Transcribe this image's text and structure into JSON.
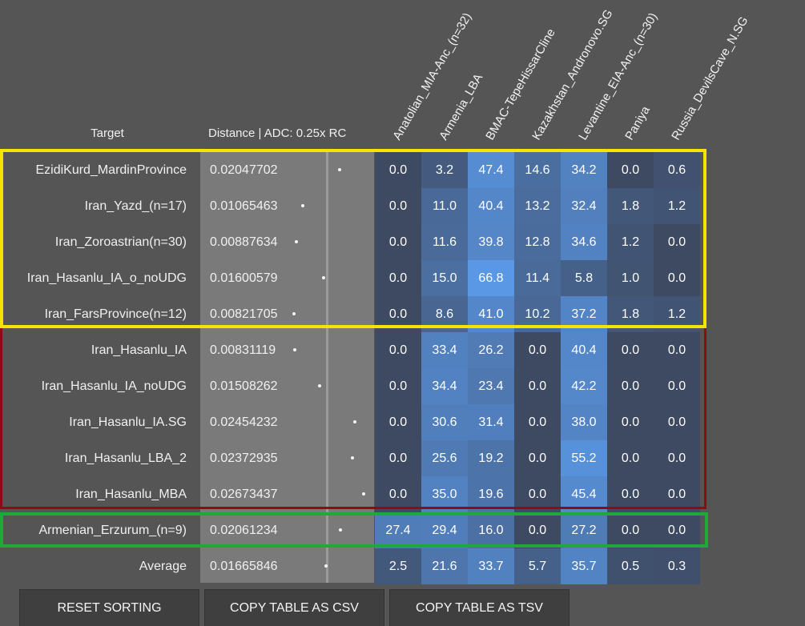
{
  "header": {
    "target_label": "Target",
    "distance_label": "Distance | ADC: 0.25x RC"
  },
  "columns": [
    "Anatolian_MIA-Anc_(n=32)",
    "Armenia_LBA",
    "BMAC-TepeHissarCline",
    "Kazakhstan_Andronovo.SG",
    "Levantine_EIA-Anc_(n=30)",
    "Paniya",
    "Russia_DevilsCave_N.SG"
  ],
  "rows": [
    {
      "target": "EzidiKurd_MardinProvince",
      "distance": "0.02047702",
      "dist_value": 0.02047702,
      "values": [
        "0.0",
        "3.2",
        "47.4",
        "14.6",
        "34.2",
        "0.0",
        "0.6"
      ]
    },
    {
      "target": "Iran_Yazd_(n=17)",
      "distance": "0.01065463",
      "dist_value": 0.01065463,
      "values": [
        "0.0",
        "11.0",
        "40.4",
        "13.2",
        "32.4",
        "1.8",
        "1.2"
      ]
    },
    {
      "target": "Iran_Zoroastrian(n=30)",
      "distance": "0.00887634",
      "dist_value": 0.00887634,
      "values": [
        "0.0",
        "11.6",
        "39.8",
        "12.8",
        "34.6",
        "1.2",
        "0.0"
      ]
    },
    {
      "target": "Iran_Hasanlu_IA_o_noUDG",
      "distance": "0.01600579",
      "dist_value": 0.01600579,
      "values": [
        "0.0",
        "15.0",
        "66.8",
        "11.4",
        "5.8",
        "1.0",
        "0.0"
      ]
    },
    {
      "target": "Iran_FarsProvince(n=12)",
      "distance": "0.00821705",
      "dist_value": 0.00821705,
      "values": [
        "0.0",
        "8.6",
        "41.0",
        "10.2",
        "37.2",
        "1.8",
        "1.2"
      ]
    },
    {
      "target": "Iran_Hasanlu_IA",
      "distance": "0.00831119",
      "dist_value": 0.00831119,
      "values": [
        "0.0",
        "33.4",
        "26.2",
        "0.0",
        "40.4",
        "0.0",
        "0.0"
      ]
    },
    {
      "target": "Iran_Hasanlu_IA_noUDG",
      "distance": "0.01508262",
      "dist_value": 0.01508262,
      "values": [
        "0.0",
        "34.4",
        "23.4",
        "0.0",
        "42.2",
        "0.0",
        "0.0"
      ]
    },
    {
      "target": "Iran_Hasanlu_IA.SG",
      "distance": "0.02454232",
      "dist_value": 0.02454232,
      "values": [
        "0.0",
        "30.6",
        "31.4",
        "0.0",
        "38.0",
        "0.0",
        "0.0"
      ]
    },
    {
      "target": "Iran_Hasanlu_LBA_2",
      "distance": "0.02372935",
      "dist_value": 0.02372935,
      "values": [
        "0.0",
        "25.6",
        "19.2",
        "0.0",
        "55.2",
        "0.0",
        "0.0"
      ]
    },
    {
      "target": "Iran_Hasanlu_MBA",
      "distance": "0.02673437",
      "dist_value": 0.02673437,
      "values": [
        "0.0",
        "35.0",
        "19.6",
        "0.0",
        "45.4",
        "0.0",
        "0.0"
      ]
    },
    {
      "target": "Armenian_Erzurum_(n=9)",
      "distance": "0.02061234",
      "dist_value": 0.02061234,
      "values": [
        "27.4",
        "29.4",
        "16.0",
        "0.0",
        "27.2",
        "0.0",
        "0.0"
      ]
    },
    {
      "target": "Average",
      "distance": "0.01665846",
      "dist_value": 0.01665846,
      "values": [
        "2.5",
        "21.6",
        "33.7",
        "5.7",
        "35.7",
        "0.5",
        "0.3"
      ]
    }
  ],
  "buttons": {
    "reset": "RESET SORTING",
    "csv": "COPY TABLE AS CSV",
    "tsv": "COPY TABLE AS TSV"
  },
  "colors": {
    "background": "#555555",
    "cell_low": "#3e4a62",
    "cell_high": "#5a98e6",
    "box_yellow": "#f4e400",
    "box_red": "#8c0b14",
    "box_green": "#21a83a"
  }
}
